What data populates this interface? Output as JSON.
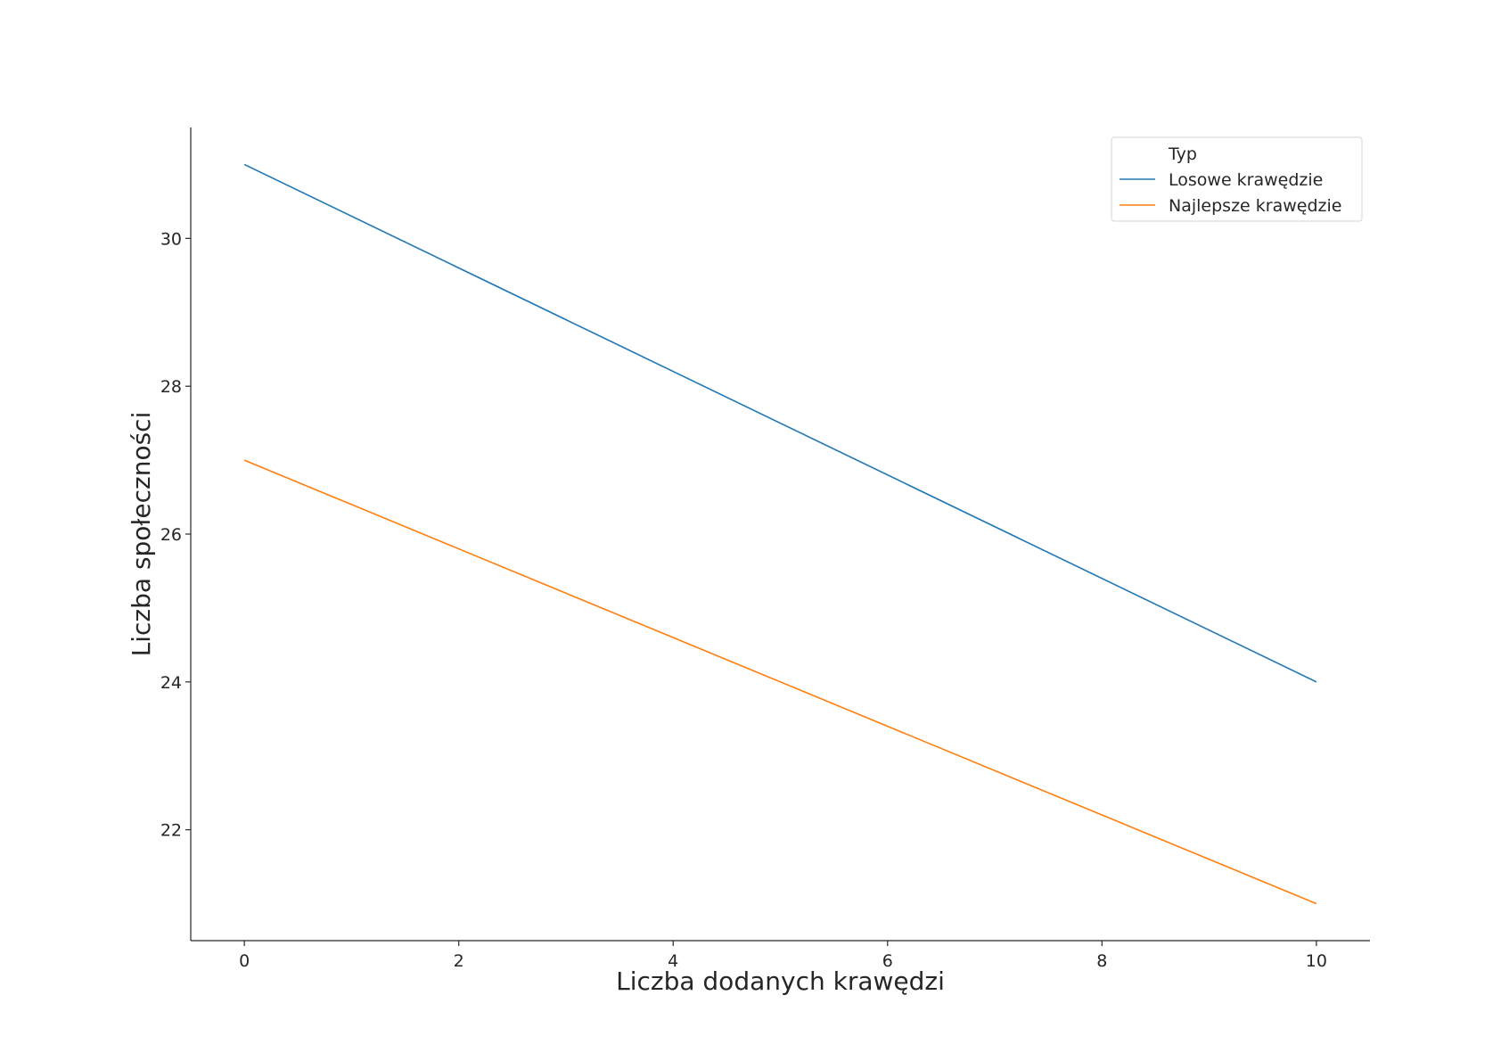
{
  "chart_data": {
    "type": "line",
    "title": "",
    "xlabel": "Liczba dodanych krawędzi",
    "ylabel": "Liczba społeczności",
    "x": [
      0,
      10
    ],
    "xlim": [
      -0.5,
      10.5
    ],
    "ylim": [
      20.5,
      31.5
    ],
    "xticks": [
      0,
      2,
      4,
      6,
      8,
      10
    ],
    "yticks": [
      22,
      24,
      26,
      28,
      30
    ],
    "grid": false,
    "legend": {
      "title": "Typ",
      "placement": "top-right"
    },
    "series": [
      {
        "name": "Losowe krawędzie",
        "x": [
          0,
          10
        ],
        "values": [
          31,
          24
        ],
        "color": "#1f77b4"
      },
      {
        "name": "Najlepsze krawędzie",
        "x": [
          0,
          10
        ],
        "values": [
          27,
          21
        ],
        "color": "#ff7f0e"
      }
    ]
  }
}
